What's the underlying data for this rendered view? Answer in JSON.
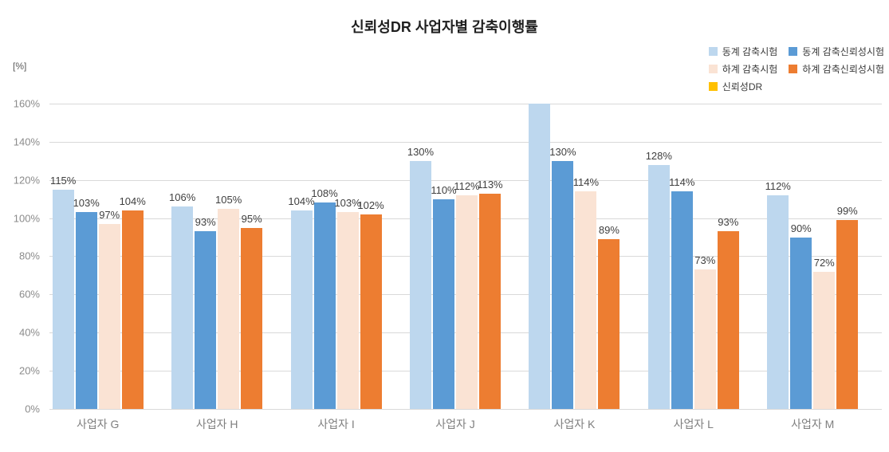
{
  "chart_data": {
    "type": "bar",
    "title": "신뢰성DR 사업자별 감축이행률",
    "unit_label": "[%]",
    "categories": [
      "사업자 G",
      "사업자 H",
      "사업자 I",
      "사업자 J",
      "사업자 K",
      "사업자 L",
      "사업자 M"
    ],
    "series": [
      {
        "name": "동계 감축시험",
        "color": "#BDD7EE",
        "values": [
          115,
          106,
          104,
          130,
          160,
          128,
          112
        ],
        "labels": [
          "115%",
          "106%",
          "104%",
          "130%",
          null,
          "128%",
          "112%"
        ],
        "note": "사업자 K bar reaches axis maximum (clipped, no data label shown)"
      },
      {
        "name": "동계 감축신뢰성시험",
        "color": "#5B9BD5",
        "values": [
          103,
          93,
          108,
          110,
          130,
          114,
          90
        ],
        "labels": [
          "103%",
          "93%",
          "108%",
          "110%",
          "130%",
          "114%",
          "90%"
        ]
      },
      {
        "name": "하계 감축시험",
        "color": "#FAE3D4",
        "values": [
          97,
          105,
          103,
          112,
          114,
          73,
          72
        ],
        "labels": [
          "97%",
          "105%",
          "103%",
          "112%",
          "114%",
          "73%",
          "72%"
        ]
      },
      {
        "name": "하계 감축신뢰성시험",
        "color": "#ED7D31",
        "values": [
          104,
          95,
          102,
          113,
          89,
          93,
          99
        ],
        "labels": [
          "104%",
          "95%",
          "102%",
          "113%",
          "89%",
          "93%",
          "99%"
        ]
      },
      {
        "name": "신뢰성DR",
        "color": "#FFC000",
        "values": [
          null,
          null,
          null,
          null,
          null,
          null,
          null
        ],
        "labels": [
          null,
          null,
          null,
          null,
          null,
          null,
          null
        ],
        "note": "appears in legend only; no visible bars"
      }
    ],
    "legend": {
      "position": "top-right",
      "columns": 2,
      "items": [
        {
          "label": "동계 감축시험",
          "color": "#BDD7EE"
        },
        {
          "label": "동계 감축신뢰성시험",
          "color": "#5B9BD5"
        },
        {
          "label": "하계 감축시험",
          "color": "#FAE3D4"
        },
        {
          "label": "하계 감축신뢰성시험",
          "color": "#ED7D31"
        },
        {
          "label": "신뢰성DR",
          "color": "#FFC000"
        }
      ]
    },
    "y_axis": {
      "min": 0,
      "max": 160,
      "step": 20,
      "tick_labels": [
        "0%",
        "20%",
        "40%",
        "60%",
        "80%",
        "100%",
        "120%",
        "140%",
        "160%"
      ]
    },
    "grid": true,
    "colors": {
      "gridline": "#d9d9d9",
      "tick_label": "#8b8b8b",
      "category_label": "#7f7f7f",
      "data_label": "#3f3f3f",
      "title": "#1f1f1f"
    }
  }
}
